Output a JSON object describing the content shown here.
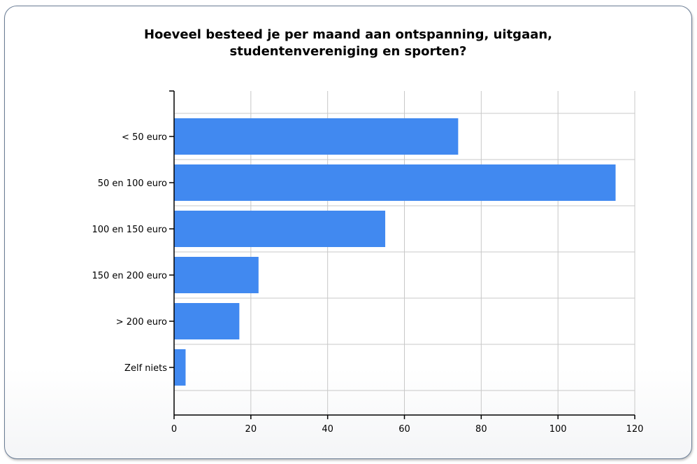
{
  "chart_data": {
    "type": "bar",
    "orientation": "horizontal",
    "title": "Hoeveel besteed je per maand aan ontspanning, uitgaan, studentenvereniging en sporten?",
    "title_lines": [
      "Hoeveel besteed je per maand aan ontspanning, uitgaan,",
      "studentenvereniging en sporten?"
    ],
    "categories": [
      "< 50 euro",
      "50 en 100 euro",
      "100 en 150 euro",
      "150 en 200 euro",
      "> 200 euro",
      "Zelf niets"
    ],
    "values": [
      74,
      115,
      55,
      22,
      17,
      3
    ],
    "xlim": [
      0,
      120
    ],
    "xticks": [
      0,
      20,
      40,
      60,
      80,
      100,
      120
    ],
    "xlabel": "",
    "ylabel": "",
    "grid": true,
    "legend": "none",
    "bar_color": "#4189f0",
    "grid_color": "#c8c8c8"
  }
}
